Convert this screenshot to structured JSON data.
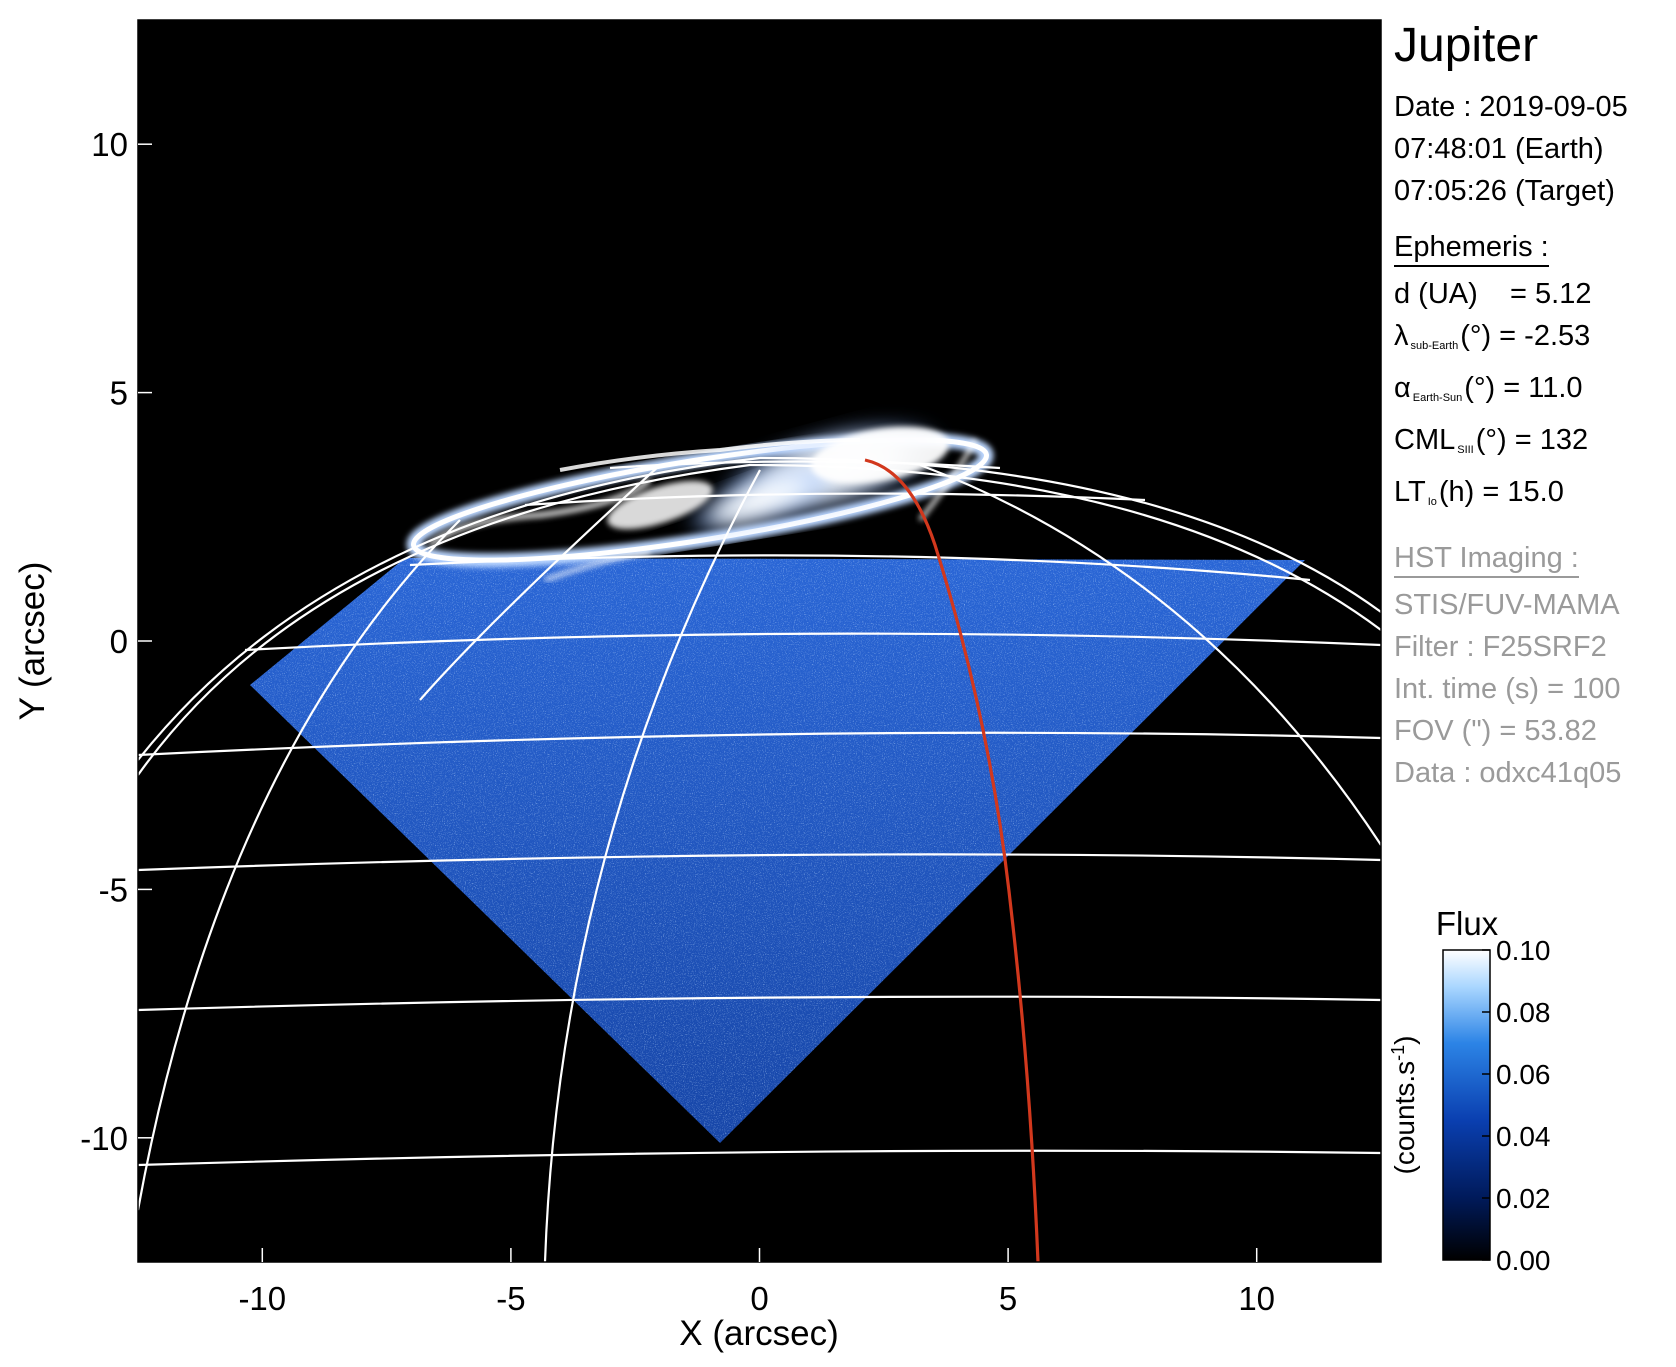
{
  "image": {
    "description_colors": {
      "background": "#000000",
      "flux_low": "#00123f",
      "flux_mid": "#1e5fd8",
      "flux_high": "#ffffff",
      "grid": "#ffffff",
      "footprint_line": "#d2381d"
    }
  },
  "axes": {
    "xlabel": "X (arcsec)",
    "ylabel": "Y (arcsec)",
    "xlim": [
      -12.5,
      12.5
    ],
    "ylim": [
      -12.5,
      12.5
    ],
    "x_ticks": [
      {
        "value": -10,
        "label": "-10"
      },
      {
        "value": -5,
        "label": "-5"
      },
      {
        "value": 0,
        "label": "0"
      },
      {
        "value": 5,
        "label": "5"
      },
      {
        "value": 10,
        "label": "10"
      }
    ],
    "y_ticks": [
      {
        "value": 10,
        "label": "10"
      },
      {
        "value": 5,
        "label": "5"
      },
      {
        "value": 0,
        "label": "0"
      },
      {
        "value": -5,
        "label": "-5"
      },
      {
        "value": -10,
        "label": "-10"
      }
    ]
  },
  "panel": {
    "title": "Jupiter",
    "date_line": "Date : 2019-09-05",
    "time_earth": "07:48:01 (Earth)",
    "time_target": "07:05:26 (Target)",
    "ephemeris_heading": "Ephemeris :",
    "ephemeris": {
      "d_label": "d (UA)",
      "d_value": "= 5.12",
      "lambda_symbol": "λ",
      "lambda_sub": "sub-Earth",
      "lambda_rest": "(°) = -2.53",
      "alpha_symbol": "α",
      "alpha_sub": "Earth-Sun",
      "alpha_rest": "(°) = 11.0",
      "cml_symbol": "CML",
      "cml_sub": "SIII",
      "cml_rest": "(°) = 132",
      "lt_symbol": "LT",
      "lt_sub": "Io",
      "lt_rest": "(h) = 15.0"
    },
    "imaging_heading": "HST Imaging :",
    "imaging": [
      "STIS/FUV-MAMA",
      "Filter : F25SRF2",
      "Int. time (s) = 100",
      "FOV (\") = 53.82",
      "Data : odxc41q05"
    ]
  },
  "colorbar": {
    "title": "Flux",
    "unit_label": "(counts.s",
    "unit_exp": "-1",
    "unit_close": ")",
    "range": [
      0.0,
      0.1
    ],
    "ticks": [
      {
        "value": 0.1,
        "label": "0.10"
      },
      {
        "value": 0.08,
        "label": "0.08"
      },
      {
        "value": 0.06,
        "label": "0.06"
      },
      {
        "value": 0.04,
        "label": "0.04"
      },
      {
        "value": 0.02,
        "label": "0.02"
      },
      {
        "value": 0.0,
        "label": "0.00"
      }
    ]
  }
}
